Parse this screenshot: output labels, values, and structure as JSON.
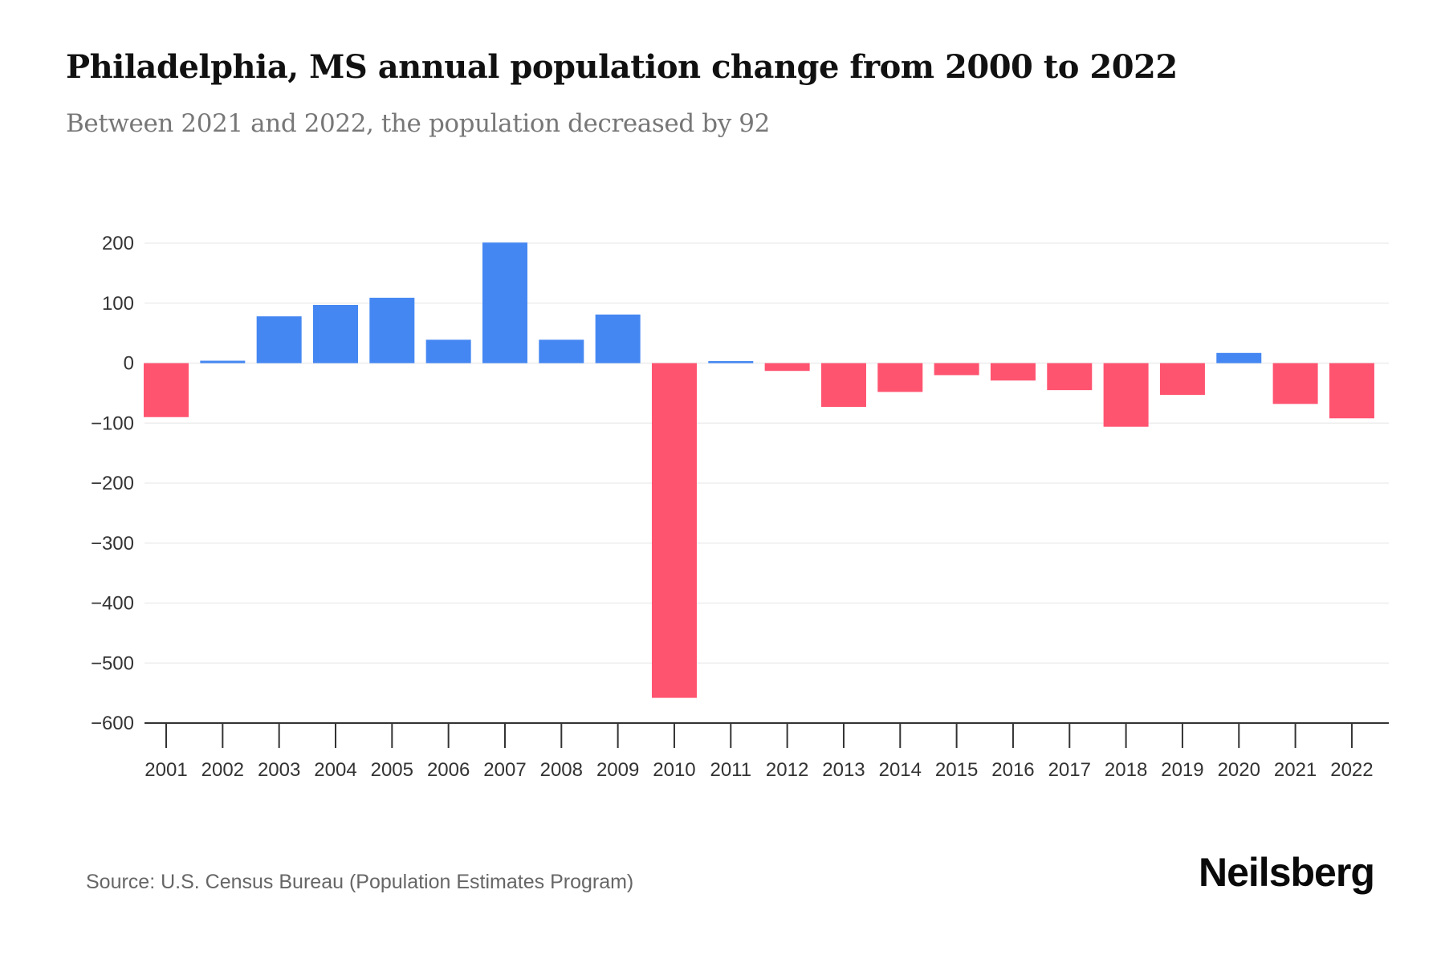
{
  "header": {
    "title": "Philadelphia, MS annual population change from 2000 to 2022",
    "subtitle": "Between 2021 and 2022, the population decreased by 92"
  },
  "footer": {
    "source": "Source: U.S. Census Bureau (Population Estimates Program)",
    "brand": "Neilsberg"
  },
  "colors": {
    "positive": "#4587F2",
    "negative": "#FF5470",
    "gridline": "#EEEEEE",
    "axis": "#333333"
  },
  "chart_data": {
    "type": "bar",
    "title": "Philadelphia, MS annual population change from 2000 to 2022",
    "subtitle": "Between 2021 and 2022, the population decreased by 92",
    "xlabel": "",
    "ylabel": "",
    "categories": [
      "2001",
      "2002",
      "2003",
      "2004",
      "2005",
      "2006",
      "2007",
      "2008",
      "2009",
      "2010",
      "2011",
      "2012",
      "2013",
      "2014",
      "2015",
      "2016",
      "2017",
      "2018",
      "2019",
      "2020",
      "2021",
      "2022"
    ],
    "values": [
      -90,
      4,
      78,
      97,
      109,
      39,
      201,
      39,
      81,
      -558,
      3,
      -13,
      -73,
      -48,
      -20,
      -29,
      -45,
      -106,
      -53,
      17,
      -68,
      -92
    ],
    "ylim": [
      -600,
      200
    ],
    "yticks": [
      200,
      100,
      0,
      -100,
      -200,
      -300,
      -400,
      -500,
      -600
    ],
    "ytick_labels": [
      "200",
      "100",
      "0",
      "−100",
      "−200",
      "−300",
      "−400",
      "−500",
      "−600"
    ],
    "grid": true,
    "legend": "none",
    "color_rule": "blue for increase, red for decrease"
  }
}
